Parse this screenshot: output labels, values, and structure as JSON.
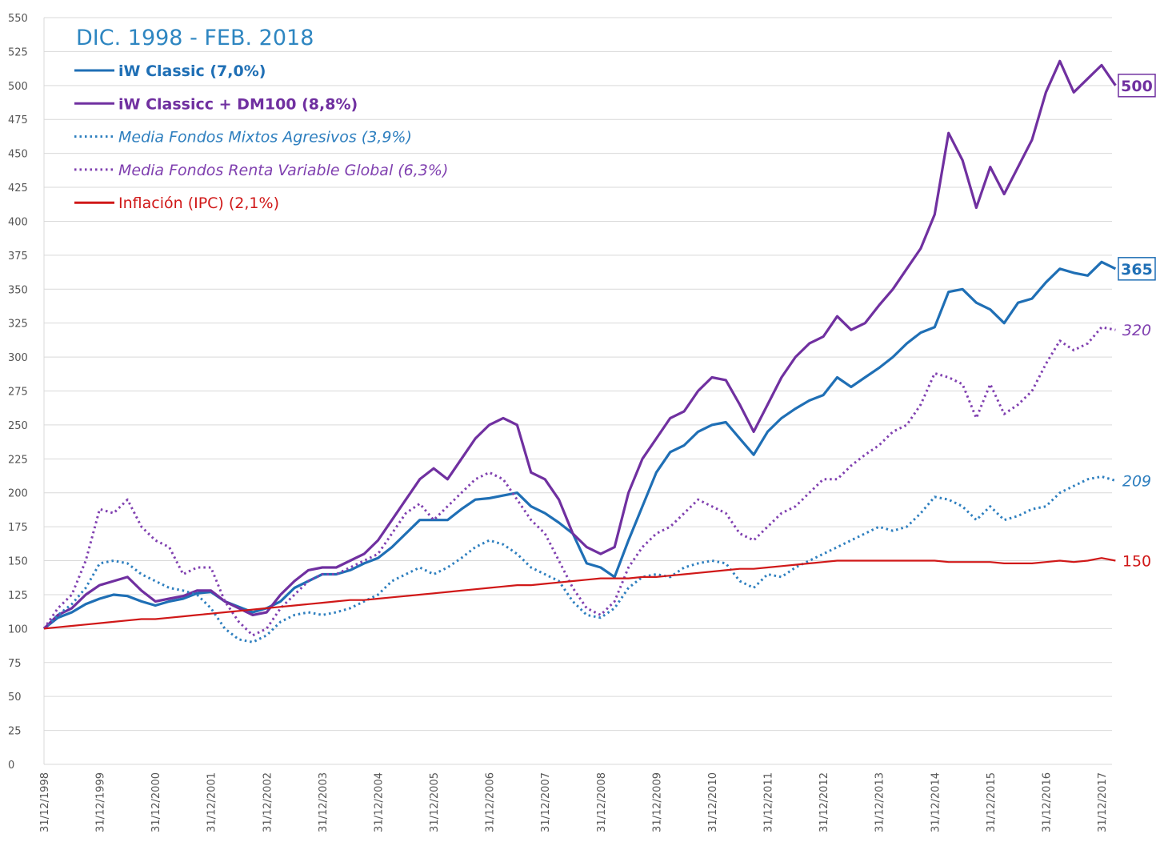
{
  "chart_data": {
    "type": "line",
    "title": "DIC. 1998 - FEB. 2018",
    "categories": [
      "31/12/1998",
      null,
      null,
      null,
      "31/12/1999",
      null,
      null,
      null,
      "31/12/2000",
      null,
      null,
      null,
      "31/12/2001",
      null,
      null,
      null,
      "31/12/2002",
      null,
      null,
      null,
      "31/12/2003",
      null,
      null,
      null,
      "31/12/2004",
      null,
      null,
      null,
      "31/12/2005",
      null,
      null,
      null,
      "31/12/2006",
      null,
      null,
      null,
      "31/12/2007",
      null,
      null,
      null,
      "31/12/2008",
      null,
      null,
      null,
      "31/12/2009",
      null,
      null,
      null,
      "31/12/2010",
      null,
      null,
      null,
      "31/12/2011",
      null,
      null,
      null,
      "31/12/2012",
      null,
      null,
      null,
      "31/12/2013",
      null,
      null,
      null,
      "31/12/2014",
      null,
      null,
      null,
      "31/12/2015",
      null,
      null,
      null,
      "31/12/2016",
      null,
      null,
      null,
      "31/12/2017",
      null
    ],
    "series": [
      {
        "name": "iW Classic (7,0%)",
        "color": "#1f6fb5",
        "dash": "solid",
        "end_label": 365,
        "values": [
          100,
          108,
          112,
          118,
          122,
          125,
          124,
          120,
          117,
          120,
          122,
          126,
          127,
          120,
          116,
          112,
          115,
          120,
          130,
          135,
          140,
          140,
          143,
          148,
          152,
          160,
          170,
          180,
          180,
          180,
          188,
          195,
          196,
          198,
          200,
          190,
          185,
          178,
          170,
          148,
          145,
          138,
          165,
          190,
          215,
          230,
          235,
          245,
          250,
          252,
          240,
          228,
          245,
          255,
          262,
          268,
          272,
          285,
          278,
          285,
          292,
          300,
          310,
          318,
          322,
          348,
          350,
          340,
          335,
          325,
          340,
          343,
          355,
          365,
          362,
          360,
          370,
          365
        ]
      },
      {
        "name": "iW Classicc + DM100 (8,8%)",
        "color": "#7030a0",
        "dash": "solid",
        "end_label": 500,
        "values": [
          100,
          110,
          115,
          125,
          132,
          135,
          138,
          128,
          120,
          122,
          124,
          128,
          128,
          120,
          115,
          110,
          112,
          125,
          135,
          143,
          145,
          145,
          150,
          155,
          165,
          180,
          195,
          210,
          218,
          210,
          225,
          240,
          250,
          255,
          250,
          215,
          210,
          195,
          170,
          160,
          155,
          160,
          200,
          225,
          240,
          255,
          260,
          275,
          285,
          283,
          265,
          245,
          265,
          285,
          300,
          310,
          315,
          330,
          320,
          325,
          338,
          350,
          365,
          380,
          405,
          465,
          445,
          410,
          440,
          420,
          440,
          460,
          495,
          518,
          495,
          505,
          515,
          500
        ]
      },
      {
        "name": "Media Fondos Mixtos Agresivos (3,9%)",
        "color": "#2e7fbf",
        "dash": "dotted",
        "end_label": 209,
        "values": [
          100,
          110,
          118,
          130,
          148,
          150,
          148,
          140,
          135,
          130,
          128,
          125,
          115,
          100,
          92,
          90,
          95,
          105,
          110,
          112,
          110,
          112,
          115,
          120,
          125,
          135,
          140,
          145,
          140,
          145,
          152,
          160,
          165,
          162,
          155,
          145,
          140,
          135,
          120,
          110,
          108,
          115,
          130,
          138,
          140,
          138,
          145,
          148,
          150,
          148,
          135,
          130,
          140,
          138,
          145,
          150,
          155,
          160,
          165,
          170,
          175,
          172,
          175,
          185,
          197,
          195,
          190,
          180,
          190,
          180,
          183,
          188,
          190,
          200,
          205,
          210,
          212,
          209
        ]
      },
      {
        "name": "Media Fondos Renta Variable Global (6,3%)",
        "color": "#8040b0",
        "dash": "dotted",
        "end_label": 320,
        "values": [
          100,
          115,
          125,
          150,
          188,
          185,
          195,
          175,
          165,
          160,
          140,
          145,
          145,
          120,
          105,
          95,
          100,
          115,
          125,
          135,
          140,
          140,
          145,
          150,
          155,
          170,
          185,
          192,
          180,
          190,
          200,
          210,
          215,
          210,
          195,
          180,
          170,
          150,
          130,
          115,
          110,
          120,
          145,
          160,
          170,
          175,
          185,
          195,
          190,
          185,
          170,
          165,
          175,
          185,
          190,
          200,
          210,
          210,
          220,
          228,
          235,
          245,
          250,
          265,
          288,
          285,
          280,
          255,
          280,
          258,
          265,
          275,
          295,
          312,
          305,
          310,
          322,
          320
        ]
      },
      {
        "name": "Inflación (IPC) (2,1%)",
        "color": "#d01818",
        "dash": "solid",
        "end_label": 150,
        "values": [
          100,
          101,
          102,
          103,
          104,
          105,
          106,
          107,
          107,
          108,
          109,
          110,
          111,
          112,
          113,
          114,
          115,
          116,
          117,
          118,
          119,
          120,
          121,
          121,
          122,
          123,
          124,
          125,
          126,
          127,
          128,
          129,
          130,
          131,
          132,
          132,
          133,
          134,
          135,
          136,
          137,
          137,
          137,
          138,
          138,
          139,
          140,
          141,
          142,
          143,
          144,
          144,
          145,
          146,
          147,
          148,
          149,
          150,
          150,
          150,
          150,
          150,
          150,
          150,
          150,
          149,
          149,
          149,
          149,
          148,
          148,
          148,
          149,
          150,
          149,
          150,
          152,
          150
        ]
      }
    ],
    "ylim": [
      0,
      550
    ],
    "yticks": [
      0,
      25,
      50,
      75,
      100,
      125,
      150,
      175,
      200,
      225,
      250,
      275,
      300,
      325,
      350,
      375,
      400,
      425,
      450,
      475,
      500,
      525,
      550
    ],
    "grid": true,
    "legend": "upper-left"
  }
}
